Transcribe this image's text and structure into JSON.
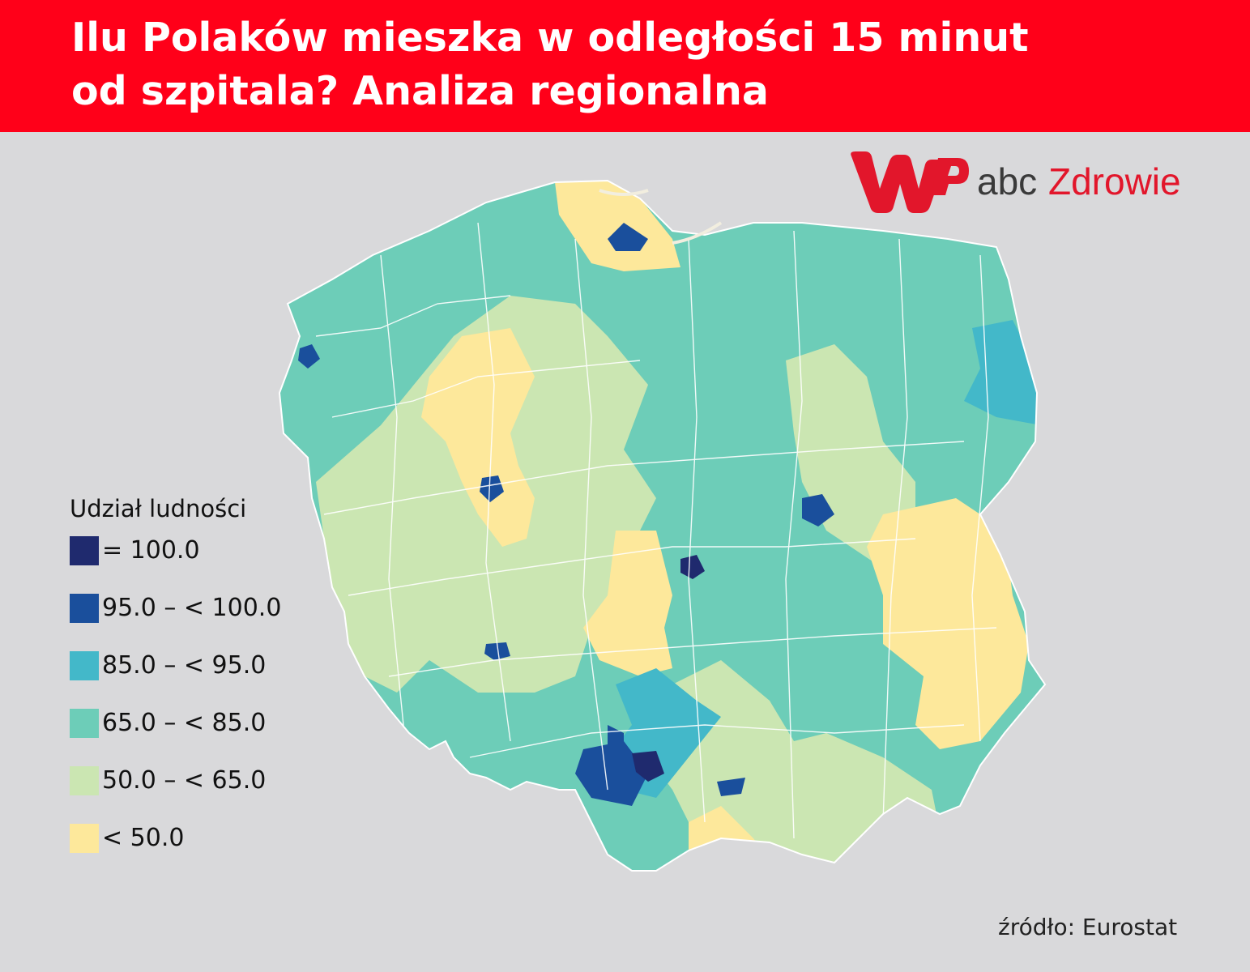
{
  "header": {
    "title_line1": "Ilu Polaków mieszka w odległości 15 minut",
    "title_line2": "od szpitala? Analiza regionalna",
    "background_color": "#ff0019"
  },
  "logo": {
    "mark_text": "WP",
    "text_part1": "abc",
    "text_part2": "Zdrowie",
    "mark_color": "#e2162b",
    "part1_color": "#3a3a3a",
    "part2_color": "#e2162b"
  },
  "legend": {
    "title": "Udział ludności",
    "items": [
      {
        "label": "= 100.0",
        "color": "#1f2a6e"
      },
      {
        "label": "95.0 – < 100.0",
        "color": "#1a4f9c"
      },
      {
        "label": "85.0 – < 95.0",
        "color": "#43b8c9"
      },
      {
        "label": "65.0 – < 85.0",
        "color": "#6dcdb8"
      },
      {
        "label": "50.0 – < 65.0",
        "color": "#cbe6b2"
      },
      {
        "label": "< 50.0",
        "color": "#fde89b"
      }
    ]
  },
  "map": {
    "border_color": "#ffffff"
  },
  "source": "źródło: Eurostat"
}
